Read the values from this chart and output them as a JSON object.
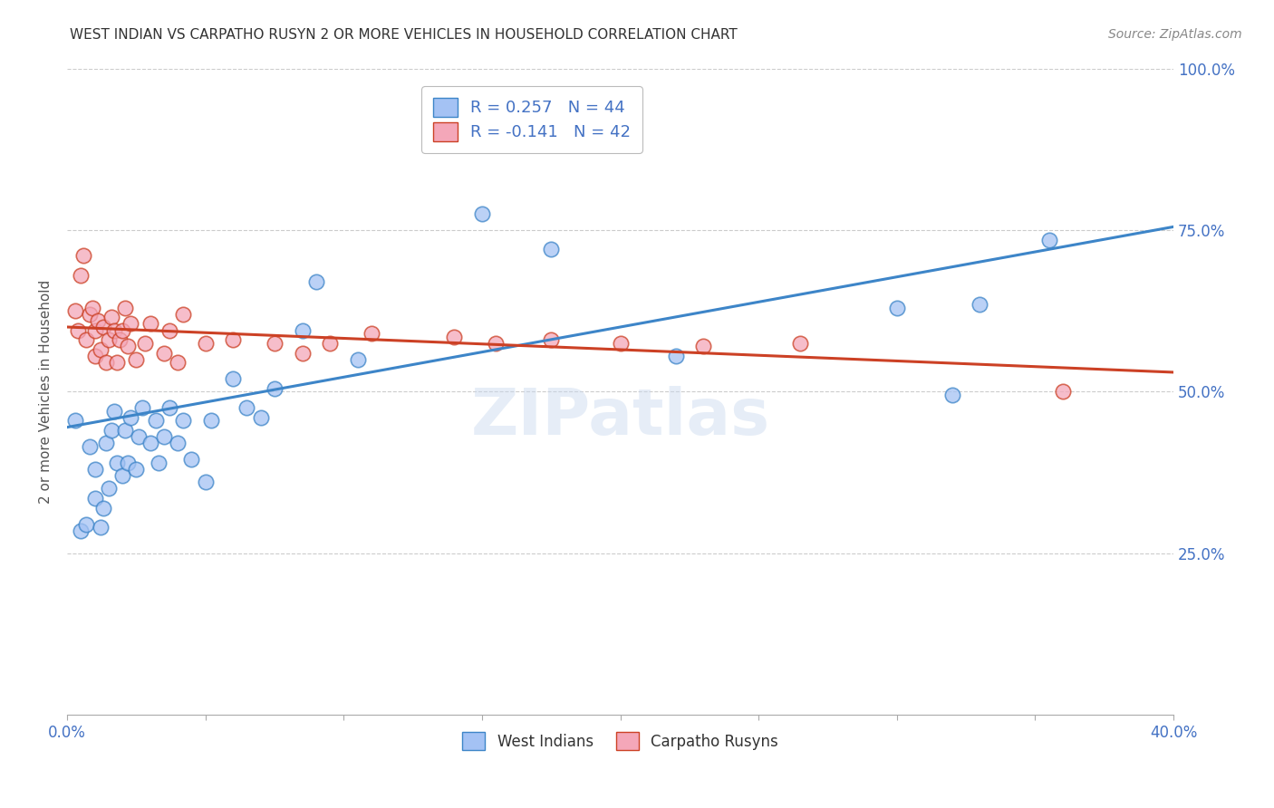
{
  "title": "WEST INDIAN VS CARPATHO RUSYN 2 OR MORE VEHICLES IN HOUSEHOLD CORRELATION CHART",
  "source": "Source: ZipAtlas.com",
  "ylabel": "2 or more Vehicles in Household",
  "xmin": 0.0,
  "xmax": 0.4,
  "ymin": 0.0,
  "ymax": 1.0,
  "ytick_pos": [
    0.0,
    0.25,
    0.5,
    0.75,
    1.0
  ],
  "ytick_labels": [
    "",
    "25.0%",
    "50.0%",
    "75.0%",
    "100.0%"
  ],
  "xtick_pos": [
    0.0,
    0.05,
    0.1,
    0.15,
    0.2,
    0.25,
    0.3,
    0.35,
    0.4
  ],
  "xtick_labels": [
    "0.0%",
    "",
    "",
    "",
    "",
    "",
    "",
    "",
    "40.0%"
  ],
  "legend_label1": "R = 0.257   N = 44",
  "legend_label2": "R = -0.141   N = 42",
  "legend_bottom1": "West Indians",
  "legend_bottom2": "Carpatho Rusyns",
  "color_blue": "#a4c2f4",
  "color_pink": "#f4a7b9",
  "color_blue_line": "#3d85c8",
  "color_pink_line": "#cc4125",
  "watermark": "ZIPatlas",
  "blue_line_y0": 0.445,
  "blue_line_y1": 0.755,
  "pink_line_y0": 0.6,
  "pink_line_y1": 0.53,
  "blue_points_x": [
    0.003,
    0.005,
    0.007,
    0.008,
    0.01,
    0.01,
    0.012,
    0.013,
    0.014,
    0.015,
    0.016,
    0.017,
    0.018,
    0.02,
    0.021,
    0.022,
    0.023,
    0.025,
    0.026,
    0.027,
    0.03,
    0.032,
    0.033,
    0.035,
    0.037,
    0.04,
    0.042,
    0.045,
    0.05,
    0.052,
    0.06,
    0.065,
    0.07,
    0.075,
    0.085,
    0.09,
    0.105,
    0.15,
    0.175,
    0.22,
    0.3,
    0.32,
    0.33,
    0.355
  ],
  "blue_points_y": [
    0.455,
    0.285,
    0.295,
    0.415,
    0.335,
    0.38,
    0.29,
    0.32,
    0.42,
    0.35,
    0.44,
    0.47,
    0.39,
    0.37,
    0.44,
    0.39,
    0.46,
    0.38,
    0.43,
    0.475,
    0.42,
    0.455,
    0.39,
    0.43,
    0.475,
    0.42,
    0.455,
    0.395,
    0.36,
    0.455,
    0.52,
    0.475,
    0.46,
    0.505,
    0.595,
    0.67,
    0.55,
    0.775,
    0.72,
    0.555,
    0.63,
    0.495,
    0.635,
    0.735
  ],
  "pink_points_x": [
    0.003,
    0.004,
    0.005,
    0.006,
    0.007,
    0.008,
    0.009,
    0.01,
    0.01,
    0.011,
    0.012,
    0.013,
    0.014,
    0.015,
    0.016,
    0.017,
    0.018,
    0.019,
    0.02,
    0.021,
    0.022,
    0.023,
    0.025,
    0.028,
    0.03,
    0.035,
    0.037,
    0.04,
    0.042,
    0.05,
    0.06,
    0.075,
    0.085,
    0.095,
    0.11,
    0.14,
    0.155,
    0.175,
    0.2,
    0.23,
    0.265,
    0.36
  ],
  "pink_points_y": [
    0.625,
    0.595,
    0.68,
    0.71,
    0.58,
    0.62,
    0.63,
    0.555,
    0.595,
    0.61,
    0.565,
    0.6,
    0.545,
    0.58,
    0.615,
    0.595,
    0.545,
    0.58,
    0.595,
    0.63,
    0.57,
    0.605,
    0.55,
    0.575,
    0.605,
    0.56,
    0.595,
    0.545,
    0.62,
    0.575,
    0.58,
    0.575,
    0.56,
    0.575,
    0.59,
    0.585,
    0.575,
    0.58,
    0.575,
    0.57,
    0.575,
    0.5
  ]
}
